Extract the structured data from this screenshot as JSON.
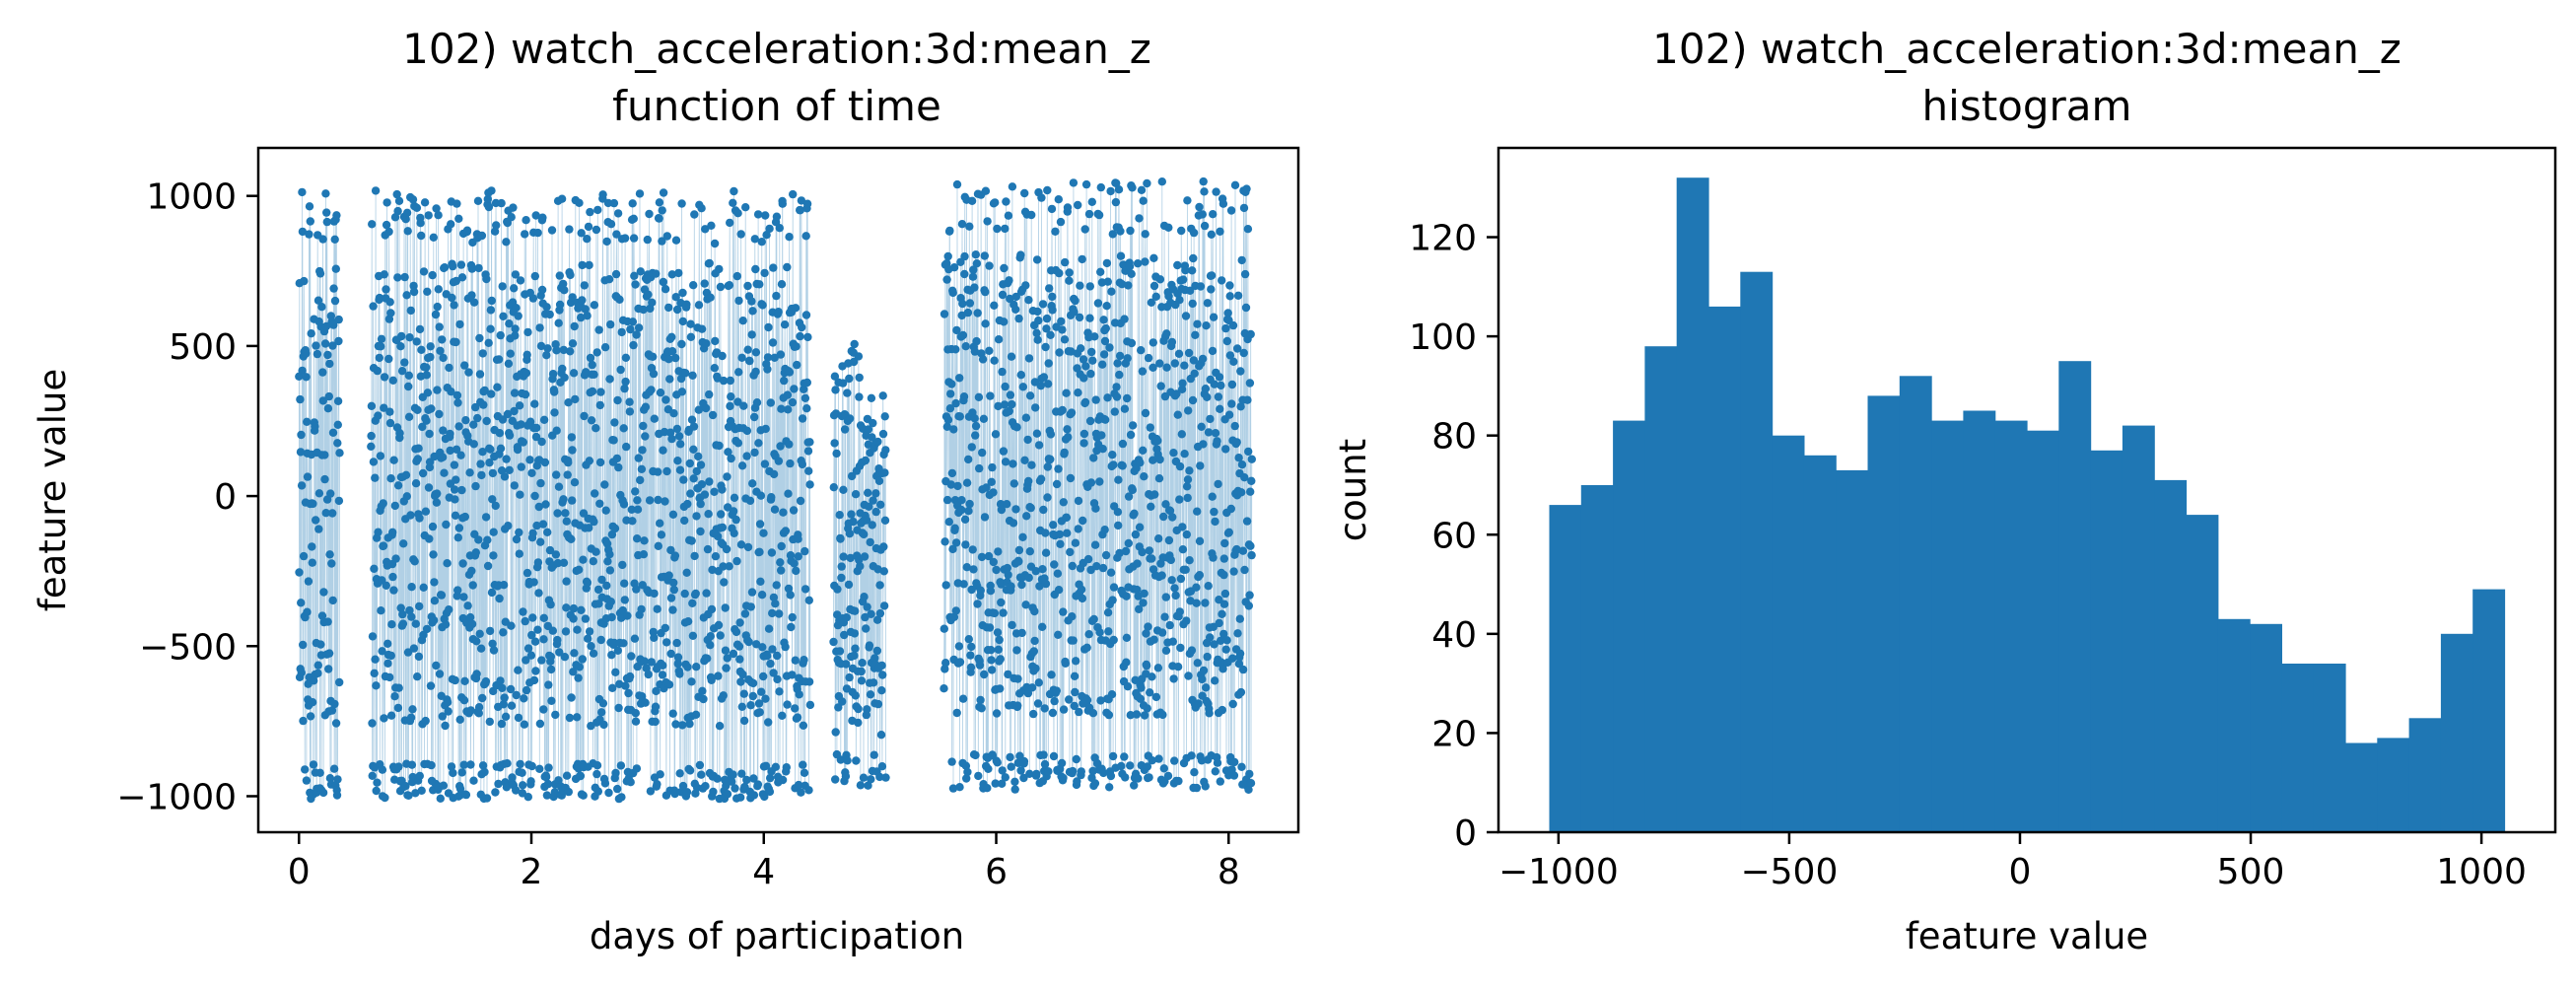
{
  "charts": {
    "left": {
      "title_line1": "102) watch_acceleration:3d:mean_z",
      "title_line2": "function of time",
      "xlabel": "days of participation",
      "ylabel": "feature value"
    },
    "right": {
      "title_line1": "102) watch_acceleration:3d:mean_z",
      "title_line2": "histogram",
      "xlabel": "feature value",
      "ylabel": "count"
    }
  },
  "chart_data": [
    {
      "type": "line",
      "title": "102) watch_acceleration:3d:mean_z\nfunction of time",
      "xlabel": "days of participation",
      "ylabel": "feature value",
      "xlim": [
        -0.35,
        8.6
      ],
      "ylim": [
        -1120,
        1160
      ],
      "xticks": [
        0,
        2,
        4,
        6,
        8
      ],
      "yticks": [
        -1000,
        -500,
        0,
        500,
        1000
      ],
      "grid": false,
      "color": "#1f77b4",
      "note_segments": "time series of feature value vs. days; points sampled densely within active segments",
      "segments": [
        {
          "x_start": 0.0,
          "x_end": 0.35,
          "y_min": -1010,
          "y_max": 1020
        },
        {
          "x_start": 0.62,
          "x_end": 4.4,
          "y_min": -1010,
          "y_max": 1020
        },
        {
          "x_start": 4.6,
          "x_end": 5.05,
          "y_min": -980,
          "y_max": 510
        },
        {
          "x_start": 5.55,
          "x_end": 8.2,
          "y_min": -980,
          "y_max": 1050
        }
      ]
    },
    {
      "type": "bar",
      "title": "102) watch_acceleration:3d:mean_z\nhistogram",
      "xlabel": "feature value",
      "ylabel": "count",
      "xlim": [
        -1130,
        1160
      ],
      "ylim": [
        0,
        138
      ],
      "xticks": [
        -1000,
        -500,
        0,
        500,
        1000
      ],
      "yticks": [
        0,
        20,
        40,
        60,
        80,
        100,
        120
      ],
      "grid": false,
      "color": "#1f77b4",
      "bin_start": -1020,
      "bin_width": 69,
      "values": [
        66,
        70,
        83,
        98,
        132,
        106,
        113,
        80,
        76,
        73,
        88,
        92,
        83,
        85,
        83,
        81,
        95,
        77,
        82,
        71,
        64,
        43,
        42,
        34,
        34,
        18,
        19,
        23,
        40,
        49
      ]
    }
  ]
}
